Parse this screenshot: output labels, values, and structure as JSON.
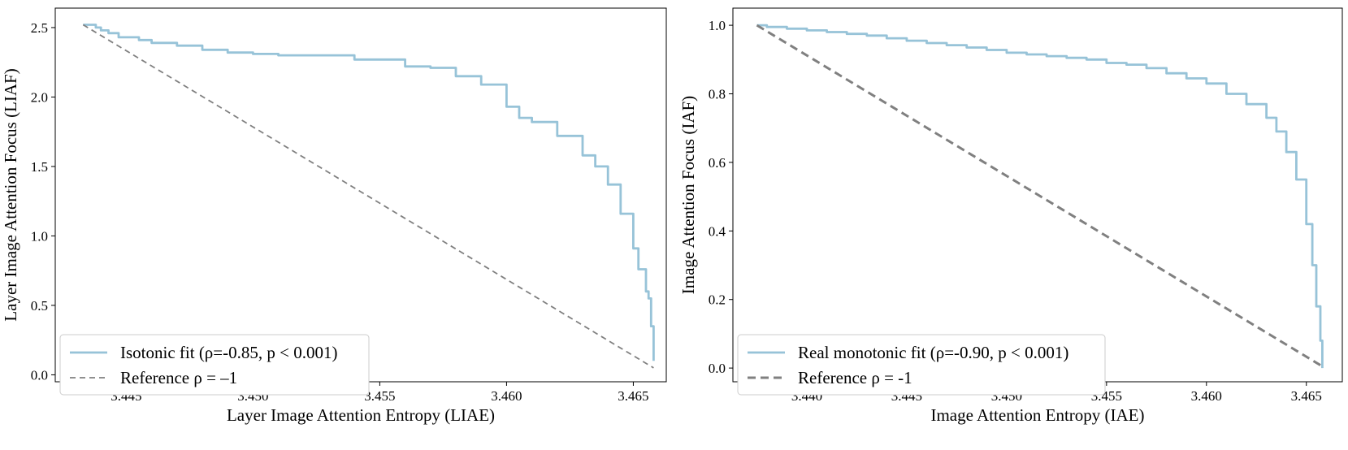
{
  "colors": {
    "fit_line": "#97c3d8",
    "reference_line": "#808080",
    "axes": "#000000",
    "legend_border": "#cccccc"
  },
  "chart_data": [
    {
      "type": "line",
      "xlabel": "Layer Image Attention Entropy (LIAE)",
      "ylabel": "Layer Image Attention Focus (LIAF)",
      "xlim": [
        3.4422,
        3.4663
      ],
      "ylim": [
        -0.05,
        2.64
      ],
      "xticks": [
        3.445,
        3.45,
        3.455,
        3.46,
        3.465
      ],
      "xtick_labels": [
        "3.445",
        "3.450",
        "3.455",
        "3.460",
        "3.465"
      ],
      "yticks": [
        0.0,
        0.5,
        1.0,
        1.5,
        2.0,
        2.5
      ],
      "ytick_labels": [
        "0.0",
        "0.5",
        "1.0",
        "1.5",
        "2.0",
        "2.5"
      ],
      "grid": false,
      "legend_position": "lower-left",
      "series": [
        {
          "name": "Isotonic fit (ρ=-0.85, p < 0.001)",
          "style": "solid",
          "x": [
            3.4433,
            3.4435,
            3.4438,
            3.444,
            3.4443,
            3.4447,
            3.445,
            3.4455,
            3.4456,
            3.446,
            3.447,
            3.448,
            3.449,
            3.45,
            3.451,
            3.452,
            3.454,
            3.456,
            3.457,
            3.458,
            3.459,
            3.46,
            3.4605,
            3.461,
            3.462,
            3.463,
            3.4635,
            3.464,
            3.4645,
            3.465,
            3.4652,
            3.4655,
            3.4656,
            3.4657,
            3.4658
          ],
          "y": [
            2.52,
            2.52,
            2.5,
            2.48,
            2.46,
            2.43,
            2.43,
            2.41,
            2.41,
            2.39,
            2.37,
            2.34,
            2.32,
            2.31,
            2.3,
            2.3,
            2.27,
            2.22,
            2.21,
            2.15,
            2.09,
            1.93,
            1.85,
            1.82,
            1.72,
            1.58,
            1.5,
            1.37,
            1.16,
            0.91,
            0.76,
            0.6,
            0.55,
            0.35,
            0.1
          ]
        },
        {
          "name": "Reference ρ = –1",
          "style": "dashed",
          "x": [
            3.4433,
            3.4658
          ],
          "y": [
            2.52,
            0.05
          ]
        }
      ]
    },
    {
      "type": "line",
      "xlabel": "Image Attention Entropy (IAE)",
      "ylabel": "Image Attention Focus (IAF)",
      "xlim": [
        3.4363,
        3.4668
      ],
      "ylim": [
        -0.04,
        1.05
      ],
      "xticks": [
        3.44,
        3.445,
        3.45,
        3.455,
        3.46,
        3.465
      ],
      "xtick_labels": [
        "3.440",
        "3.445",
        "3.450",
        "3.455",
        "3.460",
        "3.465"
      ],
      "yticks": [
        0.0,
        0.2,
        0.4,
        0.6,
        0.8,
        1.0
      ],
      "ytick_labels": [
        "0.0",
        "0.2",
        "0.4",
        "0.6",
        "0.8",
        "1.0"
      ],
      "grid": false,
      "legend_position": "lower-left",
      "series": [
        {
          "name": "Real monotonic fit (ρ=-0.90, p < 0.001)",
          "style": "solid",
          "x": [
            3.4375,
            3.438,
            3.439,
            3.44,
            3.441,
            3.442,
            3.443,
            3.444,
            3.445,
            3.446,
            3.447,
            3.448,
            3.449,
            3.45,
            3.451,
            3.452,
            3.453,
            3.454,
            3.455,
            3.456,
            3.457,
            3.458,
            3.459,
            3.46,
            3.461,
            3.462,
            3.463,
            3.4635,
            3.464,
            3.4645,
            3.465,
            3.4653,
            3.4655,
            3.4657,
            3.4658
          ],
          "y": [
            1.0,
            0.995,
            0.99,
            0.985,
            0.98,
            0.975,
            0.97,
            0.962,
            0.955,
            0.948,
            0.942,
            0.935,
            0.928,
            0.92,
            0.915,
            0.91,
            0.905,
            0.9,
            0.89,
            0.885,
            0.875,
            0.86,
            0.845,
            0.83,
            0.8,
            0.77,
            0.73,
            0.69,
            0.63,
            0.55,
            0.42,
            0.3,
            0.18,
            0.08,
            0.0
          ]
        },
        {
          "name": "Reference ρ = -1",
          "style": "dashed",
          "x": [
            3.4375,
            3.4658
          ],
          "y": [
            1.0,
            0.005
          ]
        }
      ]
    }
  ]
}
